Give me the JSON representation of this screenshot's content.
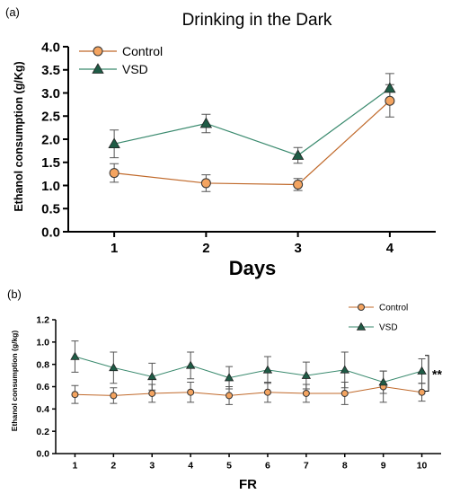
{
  "panels": [
    {
      "label": "(a)",
      "title": "Drinking in the Dark",
      "xlabel": "Days",
      "ylabel": "Ethanol consumption (g/Kg)"
    },
    {
      "label": "(b)",
      "title": "",
      "xlabel": "FR",
      "ylabel": "Ethanol consumption (g/kg)",
      "significance": "**"
    }
  ],
  "colors": {
    "control_line": "#c0692a",
    "control_marker": "#f4a460",
    "vsd_line": "#3a8a6e",
    "vsd_marker": "#1f5c46",
    "error_bar": "#555555",
    "axis": "#000000"
  },
  "chart_data": [
    {
      "type": "line",
      "title": "Drinking in the Dark",
      "xlabel": "Days",
      "ylabel": "Ethanol consumption (g/Kg)",
      "x": [
        1,
        2,
        3,
        4
      ],
      "xlim": [
        0.5,
        4.5
      ],
      "ylim": [
        0,
        4.0
      ],
      "yticks": [
        "0.0",
        "0.5",
        "1.0",
        "1.5",
        "2.0",
        "2.5",
        "3.0",
        "3.5",
        "4.0"
      ],
      "xticks": [
        "1",
        "2",
        "3",
        "4"
      ],
      "legend": "top-left",
      "grid": false,
      "series": [
        {
          "name": "Control",
          "marker": "circle",
          "values": [
            1.27,
            1.05,
            1.02,
            2.83
          ],
          "errors": [
            0.2,
            0.18,
            0.13,
            0.35
          ]
        },
        {
          "name": "VSD",
          "marker": "triangle",
          "values": [
            1.9,
            2.34,
            1.65,
            3.1
          ],
          "errors": [
            0.3,
            0.2,
            0.17,
            0.32
          ]
        }
      ]
    },
    {
      "type": "line",
      "title": "",
      "xlabel": "FR",
      "ylabel": "Ethanol consumption (g/kg)",
      "x": [
        1,
        2,
        3,
        4,
        5,
        6,
        7,
        8,
        9,
        10
      ],
      "xlim": [
        0.5,
        10.5
      ],
      "ylim": [
        0,
        1.2
      ],
      "yticks": [
        "0.0",
        "0.2",
        "0.4",
        "0.6",
        "0.8",
        "1.0",
        "1.2"
      ],
      "xticks": [
        "1",
        "2",
        "3",
        "4",
        "5",
        "6",
        "7",
        "8",
        "9",
        "10"
      ],
      "legend": "top-right",
      "grid": false,
      "series": [
        {
          "name": "Control",
          "marker": "circle",
          "values": [
            0.53,
            0.52,
            0.54,
            0.55,
            0.52,
            0.55,
            0.54,
            0.54,
            0.6,
            0.55
          ],
          "errors": [
            0.08,
            0.07,
            0.08,
            0.09,
            0.08,
            0.09,
            0.08,
            0.1,
            0.14,
            0.08
          ]
        },
        {
          "name": "VSD",
          "marker": "triangle",
          "values": [
            0.87,
            0.77,
            0.69,
            0.79,
            0.68,
            0.75,
            0.7,
            0.75,
            0.64,
            0.74
          ],
          "errors": [
            0.14,
            0.14,
            0.12,
            0.12,
            0.1,
            0.12,
            0.12,
            0.16,
            0.1,
            0.11
          ]
        }
      ]
    }
  ]
}
